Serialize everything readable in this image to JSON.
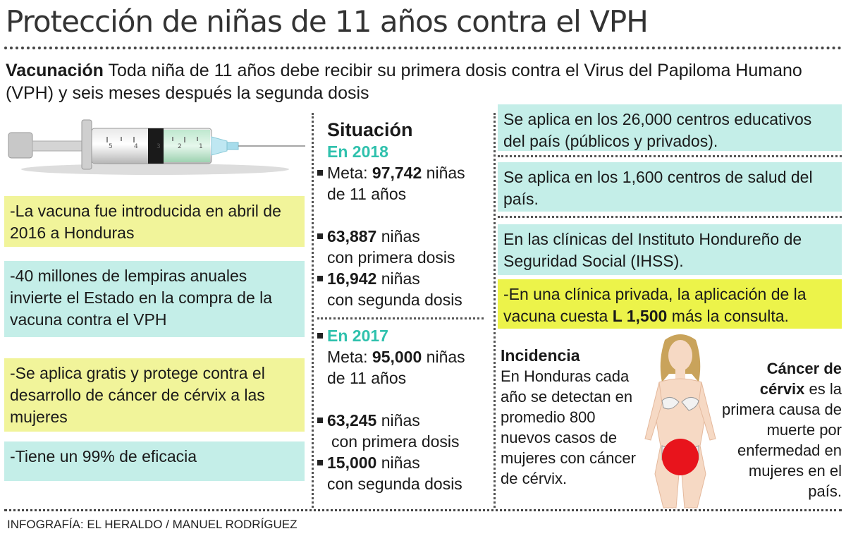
{
  "header": {
    "title": "Protección de niñas de 11 años contra el VPH"
  },
  "intro": {
    "lead": "Vacunación",
    "text": " Toda niña de 11 años debe recibir su primera dosis contra el Virus del Papiloma Humano (VPH) y seis meses después la segunda dosis"
  },
  "syringe_labels": [
    "5",
    "4",
    "3",
    "2",
    "1"
  ],
  "left_facts": [
    "-La vacuna fue introducida en abril de 2016 a Honduras",
    "-40 millones de lempiras anuales invierte el Estado en la compra de la vacuna contra el VPH",
    "-Se aplica gratis y protege contra el desarrollo de cáncer de cérvix a las mujeres",
    "-Tiene un 99% de eficacia"
  ],
  "situation": {
    "heading": "Situación",
    "y2018": {
      "label": "En 2018",
      "meta_prefix": "Meta: ",
      "meta_value": "97,742",
      "meta_suffix_1": " niñas",
      "meta_suffix_2": "de 11 años",
      "first_value": "63,887",
      "first_suffix_1": " niñas",
      "first_suffix_2": "con primera dosis",
      "second_value": "16,942",
      "second_suffix_1": " niñas",
      "second_suffix_2": "con segunda dosis"
    },
    "y2017": {
      "label": "En 2017",
      "meta_prefix": "Meta: ",
      "meta_value": "95,000",
      "meta_suffix_1": " niñas",
      "meta_suffix_2": "de 11 años",
      "first_value": "63,245",
      "first_suffix_1": " niñas",
      "first_suffix_2": "con primera dosis",
      "second_value": "15,000",
      "second_suffix_1": " niñas",
      "second_suffix_2": "con segunda dosis"
    }
  },
  "right_facts": {
    "schools": "Se aplica en los 26,000 centros educativos del país (públicos y privados).",
    "health": "Se aplica en los 1,600 centros de salud del país.",
    "ihss": "En las clínicas del Instituto Hondureño de Seguridad Social (IHSS).",
    "private_prefix": "-En una clínica privada, la aplicación de la vacuna cuesta ",
    "private_price": "L 1,500",
    "private_suffix": " más la consulta."
  },
  "incidence": {
    "heading": "Incidencia",
    "text": "En Honduras cada año se detectan en promedio 800 nuevos casos de mujeres con cáncer de cérvix."
  },
  "cancer": {
    "lead": "Cáncer de cérvix",
    "text": " es la primera causa de muerte por enfermedad en mujeres en el país."
  },
  "credit": "INFOGRAFÍA: EL HERALDO / MANUEL RODRÍGUEZ",
  "colors": {
    "yellow": "#f1f49a",
    "cyan": "#c4eee8",
    "highlight": "#ecf34a",
    "teal_text": "#2fc1ad",
    "target_red": "#e8141c"
  }
}
